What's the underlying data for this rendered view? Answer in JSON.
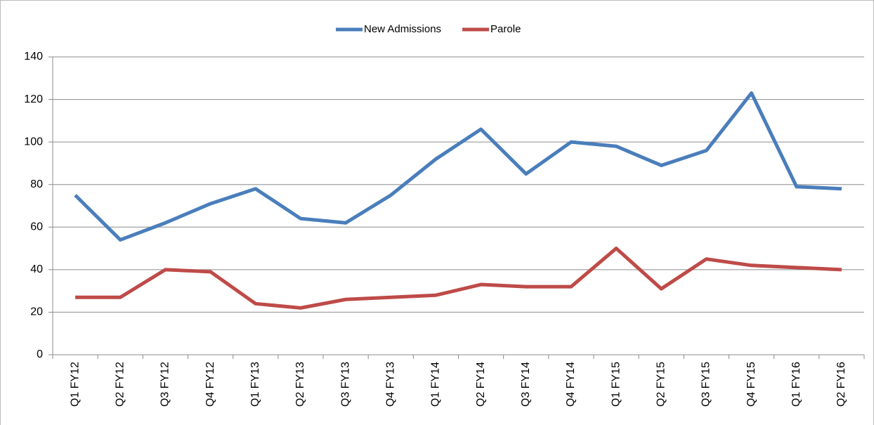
{
  "chart_data": {
    "type": "line",
    "categories": [
      "Q1 FY12",
      "Q2 FY12",
      "Q3 FY12",
      "Q4 FY12",
      "Q1 FY13",
      "Q2 FY13",
      "Q3 FY13",
      "Q4 FY13",
      "Q1 FY14",
      "Q2 FY14",
      "Q3 FY14",
      "Q4 FY14",
      "Q1 FY15",
      "Q2 FY15",
      "Q3 FY15",
      "Q4 FY15",
      "Q1 FY16",
      "Q2 FY16"
    ],
    "series": [
      {
        "name": "New Admissions",
        "color": "#4a7ebb",
        "values": [
          75,
          54,
          62,
          71,
          78,
          64,
          62,
          75,
          92,
          106,
          85,
          100,
          98,
          89,
          96,
          123,
          79,
          78
        ]
      },
      {
        "name": "Parole",
        "color": "#be4b48",
        "values": [
          27,
          27,
          40,
          39,
          24,
          22,
          26,
          27,
          28,
          33,
          32,
          32,
          50,
          31,
          45,
          42,
          41,
          40
        ]
      }
    ],
    "ylim": [
      0,
      140
    ],
    "yticks": [
      0,
      20,
      40,
      60,
      80,
      100,
      120,
      140
    ],
    "grid": true,
    "legend": "top"
  }
}
